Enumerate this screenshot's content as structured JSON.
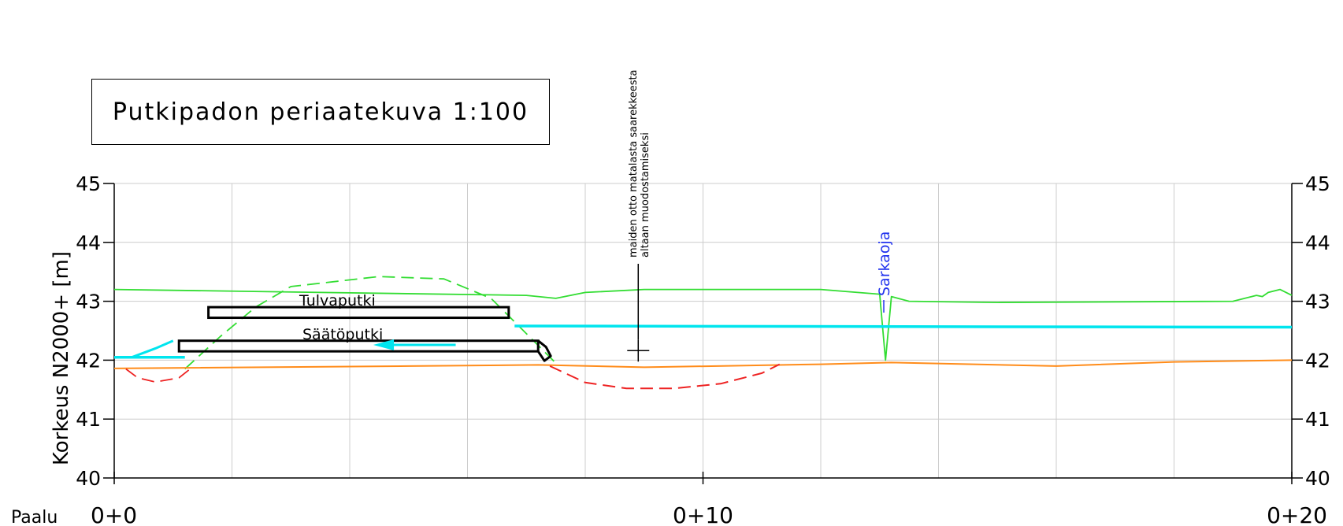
{
  "title": "Putkipadon periaatekuva 1:100",
  "axis": {
    "ylabel": "Korkeus N2000+ [m]",
    "xlabel": "Paalu",
    "y_ticks": [
      "40",
      "41",
      "42",
      "43",
      "44",
      "45"
    ],
    "y_min": 40,
    "y_max": 45,
    "x_min": 0,
    "x_max": 20,
    "x_tick_labels": [
      {
        "label": "0+0",
        "x": 0
      },
      {
        "label": "0+10",
        "x": 10
      },
      {
        "label": "0+20",
        "x": 20
      }
    ]
  },
  "labels": {
    "tulvaputki": "Tulvaputki",
    "saatoputki": "Säätöputki",
    "sarkaoja": "Sarkaoja",
    "note_line1": "maiden otto matalasta saarekkeesta",
    "note_line2": "altaan muodostamiseksi"
  },
  "colors": {
    "ground": "#33dd33",
    "water": "#00e5ee",
    "bottom": "#ff8c1a",
    "excavation": "#ee2222",
    "grid": "#cccccc",
    "sarkaoja": "#2233ee"
  },
  "chart_data": {
    "type": "line",
    "x_unit": "paalu (m)",
    "y_unit": "m (N2000)",
    "series": [
      {
        "key": "ground",
        "style": "solid",
        "points": [
          [
            0,
            43.2
          ],
          [
            7,
            43.1
          ],
          [
            7.5,
            43.05
          ],
          [
            8,
            43.15
          ],
          [
            9,
            43.2
          ],
          [
            12,
            43.2
          ],
          [
            13,
            43.12
          ],
          [
            13.1,
            42.0
          ],
          [
            13.2,
            43.08
          ],
          [
            13.5,
            43.0
          ],
          [
            15,
            42.98
          ],
          [
            19,
            43.0
          ],
          [
            19.4,
            43.1
          ],
          [
            19.5,
            43.08
          ],
          [
            19.6,
            43.15
          ],
          [
            19.8,
            43.2
          ],
          [
            20,
            43.1
          ]
        ]
      },
      {
        "key": "dam_mound",
        "style": "dashed",
        "points": [
          [
            1.2,
            41.85
          ],
          [
            1.8,
            42.4
          ],
          [
            2.4,
            42.9
          ],
          [
            3,
            43.25
          ],
          [
            4.5,
            43.42
          ],
          [
            5.6,
            43.38
          ],
          [
            6.4,
            43.05
          ],
          [
            7,
            42.45
          ],
          [
            7.5,
            41.95
          ]
        ]
      },
      {
        "key": "water",
        "style": "solid",
        "points": [
          [
            6.8,
            42.58
          ],
          [
            20,
            42.56
          ]
        ]
      },
      {
        "key": "water_upstream",
        "style": "solid",
        "points": [
          [
            0,
            42.05
          ],
          [
            1.2,
            42.05
          ]
        ]
      },
      {
        "key": "bottom",
        "style": "solid",
        "points": [
          [
            0,
            41.86
          ],
          [
            5,
            41.9
          ],
          [
            7.2,
            41.92
          ],
          [
            9,
            41.88
          ],
          [
            12,
            41.93
          ],
          [
            13.2,
            41.96
          ],
          [
            16,
            41.9
          ],
          [
            18,
            41.97
          ],
          [
            20,
            42.0
          ]
        ]
      },
      {
        "key": "excavation_left",
        "style": "dashed",
        "points": [
          [
            0.2,
            41.85
          ],
          [
            0.4,
            41.7
          ],
          [
            0.7,
            41.63
          ],
          [
            1.1,
            41.7
          ],
          [
            1.3,
            41.86
          ]
        ]
      },
      {
        "key": "excavation_right",
        "style": "dashed",
        "points": [
          [
            7.4,
            41.9
          ],
          [
            8,
            41.62
          ],
          [
            8.7,
            41.52
          ],
          [
            9.5,
            41.52
          ],
          [
            10.3,
            41.6
          ],
          [
            11,
            41.78
          ],
          [
            11.3,
            41.93
          ]
        ]
      }
    ],
    "pipes": [
      {
        "key": "tulvaputki",
        "x_start": 1.6,
        "x_end": 6.7,
        "y_bottom": 42.72,
        "y_top": 42.9
      },
      {
        "key": "saatoputki",
        "x_start": 1.1,
        "x_end": 7.2,
        "y_bottom": 42.15,
        "y_top": 42.33
      }
    ],
    "benchmark": {
      "x": 8.9,
      "y": 42.35
    }
  }
}
